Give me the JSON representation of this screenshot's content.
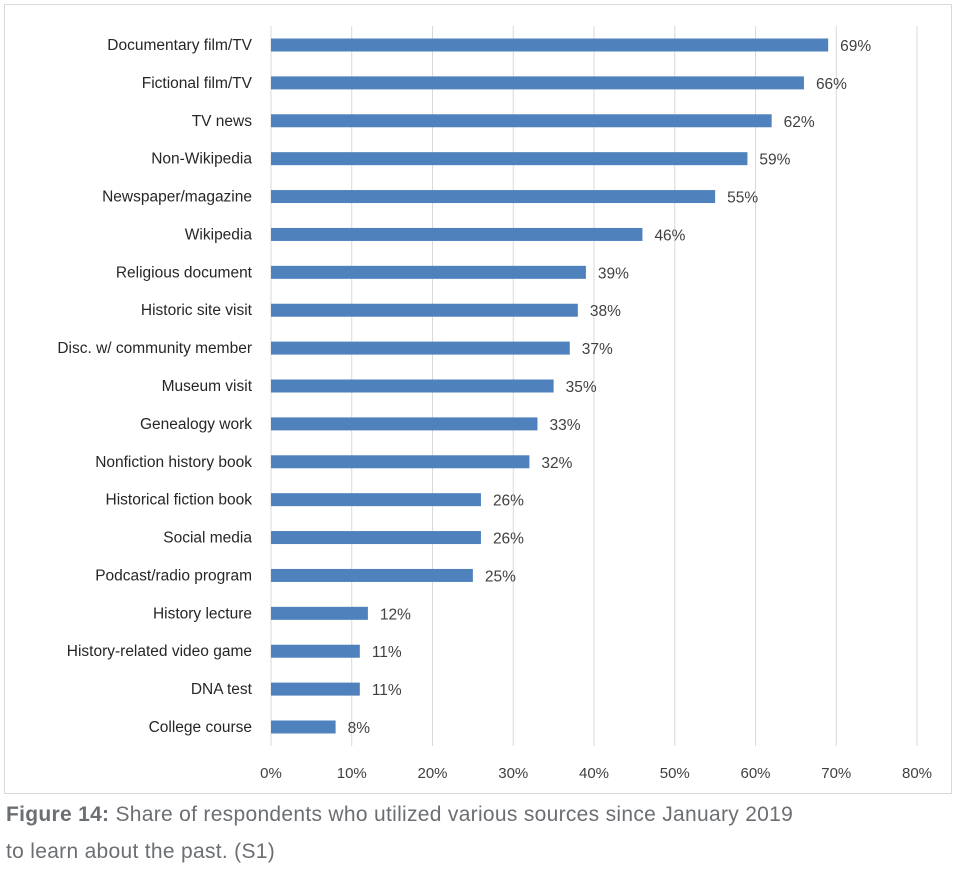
{
  "chart_data": {
    "type": "bar",
    "orientation": "horizontal",
    "title": "",
    "xlabel": "",
    "ylabel": "",
    "categories": [
      "Documentary film/TV",
      "Fictional film/TV",
      "TV news",
      "Non-Wikipedia",
      "Newspaper/magazine",
      "Wikipedia",
      "Religious document",
      "Historic site visit",
      "Disc. w/ community member",
      "Museum visit",
      "Genealogy work",
      "Nonfiction history book",
      "Historical fiction book",
      "Social media",
      "Podcast/radio program",
      "History lecture",
      "History-related video game",
      "DNA test",
      "College course"
    ],
    "values": [
      69,
      66,
      62,
      59,
      55,
      46,
      39,
      38,
      37,
      35,
      33,
      32,
      26,
      26,
      25,
      12,
      11,
      11,
      8
    ],
    "data_labels": [
      "69%",
      "66%",
      "62%",
      "59%",
      "55%",
      "46%",
      "39%",
      "38%",
      "37%",
      "35%",
      "33%",
      "32%",
      "26%",
      "26%",
      "25%",
      "12%",
      "11%",
      "11%",
      "8%"
    ],
    "xlim": [
      0,
      80
    ],
    "x_ticks": [
      "0%",
      "10%",
      "20%",
      "30%",
      "40%",
      "50%",
      "60%",
      "70%",
      "80%"
    ],
    "grid": true,
    "bar_color": "#4f81bd"
  },
  "caption": {
    "label": "Figure 14:",
    "line1": " Share of respondents who utilized various sources since January 2019",
    "line2": "to learn about the past. (S1)"
  }
}
